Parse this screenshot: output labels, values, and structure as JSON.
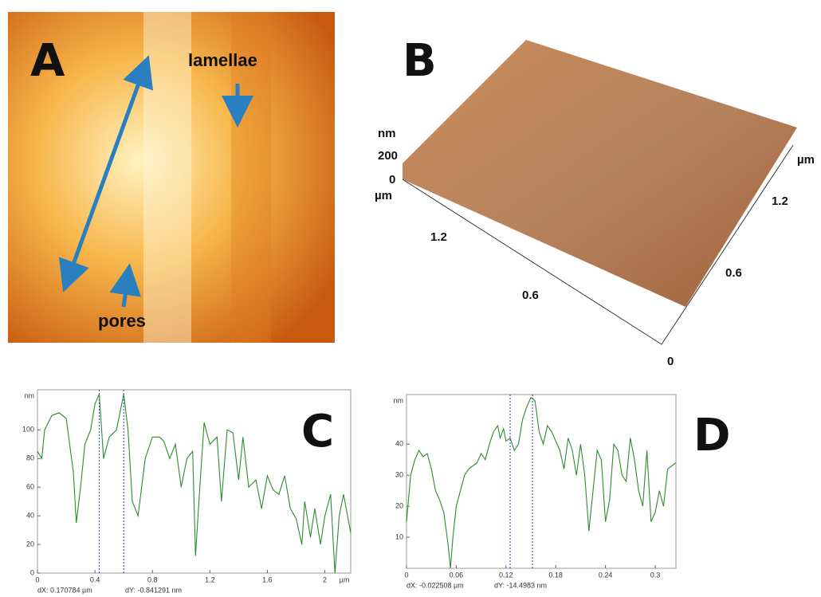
{
  "panel_a": {
    "label": "A",
    "annotations": [
      "lamellae",
      "pores"
    ]
  },
  "panel_b": {
    "label": "B",
    "z_unit": "nm",
    "z_ticks": [
      200,
      0
    ],
    "left_unit": "µm",
    "left_ticks": [
      1.2,
      0.6
    ],
    "right_unit": "µm",
    "right_ticks": [
      0,
      0.6,
      1.2
    ]
  },
  "panel_c": {
    "label": "C",
    "y_unit": "nm",
    "x_unit": "µm",
    "xlim": [
      0,
      2.18
    ],
    "ylim": [
      0,
      128
    ],
    "xticks": [
      0,
      0.4,
      0.8,
      1.2,
      1.6,
      2
    ],
    "yticks": [
      0,
      20,
      40,
      60,
      80,
      100
    ],
    "cursors": [
      0.43,
      0.6
    ],
    "readouts": [
      "dX: 0.170784 µm",
      "dY: -0.841291 nm"
    ],
    "x": [
      0,
      0.03,
      0.05,
      0.1,
      0.15,
      0.2,
      0.25,
      0.27,
      0.3,
      0.33,
      0.37,
      0.4,
      0.43,
      0.46,
      0.5,
      0.55,
      0.6,
      0.63,
      0.66,
      0.7,
      0.75,
      0.8,
      0.85,
      0.88,
      0.92,
      0.96,
      1.0,
      1.04,
      1.08,
      1.1,
      1.13,
      1.16,
      1.2,
      1.25,
      1.28,
      1.32,
      1.36,
      1.4,
      1.43,
      1.47,
      1.52,
      1.56,
      1.6,
      1.64,
      1.68,
      1.72,
      1.76,
      1.8,
      1.84,
      1.86,
      1.9,
      1.93,
      1.97,
      2.0,
      2.04,
      2.07,
      2.1,
      2.13,
      2.18
    ],
    "values": [
      85,
      80,
      100,
      110,
      112,
      108,
      70,
      35,
      60,
      90,
      100,
      118,
      125,
      80,
      95,
      100,
      125,
      100,
      50,
      40,
      80,
      95,
      95,
      92,
      80,
      90,
      60,
      80,
      85,
      12,
      60,
      105,
      90,
      95,
      50,
      100,
      98,
      65,
      95,
      60,
      65,
      45,
      68,
      58,
      55,
      68,
      45,
      38,
      20,
      50,
      25,
      45,
      20,
      40,
      55,
      0,
      40,
      55,
      28
    ]
  },
  "panel_d": {
    "label": "D",
    "y_unit": "nm",
    "xlim": [
      0,
      0.325
    ],
    "ylim": [
      0,
      56
    ],
    "xticks": [
      0,
      0.06,
      0.12,
      0.18,
      0.24,
      0.3
    ],
    "yticks": [
      10,
      20,
      30,
      40
    ],
    "cursors": [
      0.125,
      0.152
    ],
    "readouts": [
      "dX: -0.022508 µm",
      "dY: -14.4983 nm"
    ],
    "x": [
      0,
      0.005,
      0.01,
      0.015,
      0.02,
      0.025,
      0.03,
      0.035,
      0.04,
      0.045,
      0.05,
      0.053,
      0.056,
      0.06,
      0.065,
      0.07,
      0.075,
      0.08,
      0.085,
      0.09,
      0.095,
      0.1,
      0.105,
      0.11,
      0.113,
      0.117,
      0.12,
      0.125,
      0.13,
      0.135,
      0.14,
      0.145,
      0.15,
      0.155,
      0.16,
      0.165,
      0.17,
      0.175,
      0.18,
      0.185,
      0.19,
      0.195,
      0.2,
      0.205,
      0.21,
      0.215,
      0.22,
      0.225,
      0.23,
      0.235,
      0.24,
      0.245,
      0.25,
      0.255,
      0.26,
      0.265,
      0.27,
      0.275,
      0.28,
      0.285,
      0.29,
      0.295,
      0.3,
      0.305,
      0.31,
      0.315,
      0.325
    ],
    "values": [
      15,
      30,
      35,
      38,
      36,
      37,
      32,
      25,
      22,
      18,
      8,
      0,
      10,
      20,
      25,
      30,
      32,
      33,
      34,
      37,
      35,
      40,
      44,
      46,
      42,
      45,
      41,
      42,
      38,
      40,
      48,
      52,
      55,
      54,
      44,
      40,
      46,
      44,
      41,
      38,
      32,
      42,
      38,
      30,
      40,
      30,
      12,
      25,
      38,
      35,
      15,
      22,
      40,
      38,
      30,
      28,
      42,
      35,
      25,
      20,
      38,
      15,
      18,
      25,
      20,
      32,
      34
    ]
  }
}
